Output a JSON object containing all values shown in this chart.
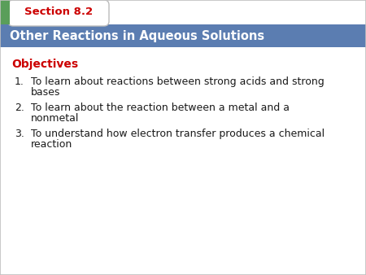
{
  "section_label": "Section 8.2",
  "header_text": "Other Reactions in Aqueous Solutions",
  "objectives_label": "Objectives",
  "items": [
    [
      "To learn about reactions between strong acids and strong",
      "bases"
    ],
    [
      "To learn about the reaction between a metal and a",
      "nonmetal"
    ],
    [
      "To understand how electron transfer produces a chemical",
      "reaction"
    ]
  ],
  "bg_color": "#ffffff",
  "header_bg_color": "#5b7db1",
  "header_text_color": "#ffffff",
  "section_tab_bg": "#ffffff",
  "section_label_color": "#cc0000",
  "objectives_color": "#cc0000",
  "body_text_color": "#1a1a1a",
  "green_accent_color": "#5a9e5a",
  "tab_border_color": "#bbbbbb",
  "outer_border_color": "#c0c0c0"
}
